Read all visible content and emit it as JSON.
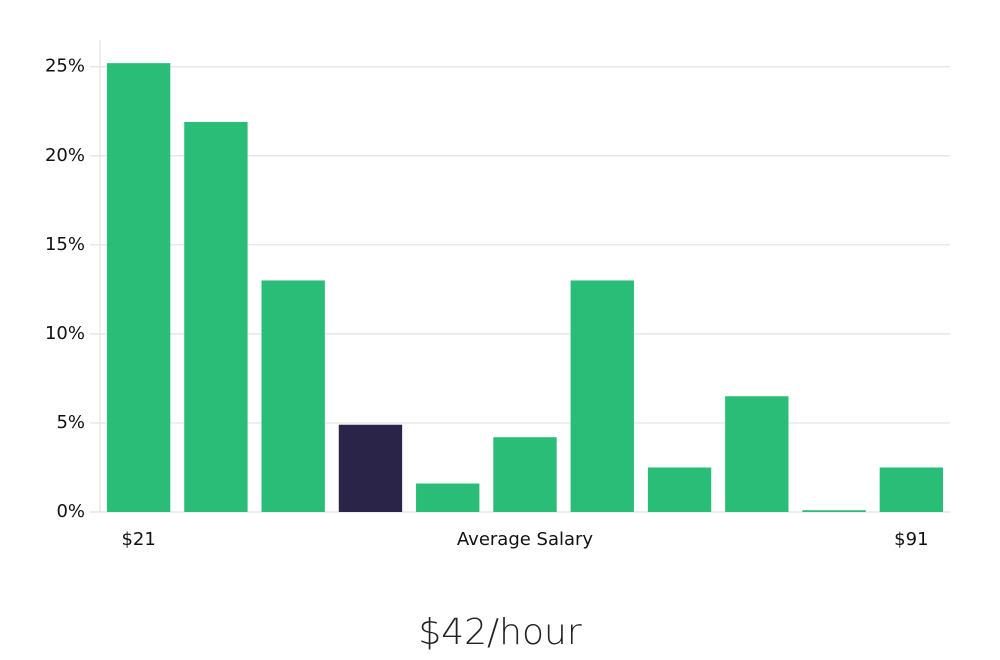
{
  "chart_data": {
    "type": "bar",
    "x_label": "Average Salary",
    "caption": "$42/hour",
    "categories": [
      "$21",
      null,
      null,
      null,
      null,
      null,
      null,
      null,
      null,
      null,
      "$91"
    ],
    "values": [
      25.2,
      21.9,
      13.0,
      4.9,
      1.6,
      4.2,
      13.0,
      2.5,
      6.5,
      0.1,
      2.5
    ],
    "colors": [
      "#2abd78",
      "#2abd78",
      "#2abd78",
      "#2a2548",
      "#2abd78",
      "#2abd78",
      "#2abd78",
      "#2abd78",
      "#2abd78",
      "#2abd78",
      "#2abd78"
    ],
    "ylim": [
      0,
      26.5
    ],
    "yticks": [
      {
        "value": 0,
        "label": "0%"
      },
      {
        "value": 5,
        "label": "5%"
      },
      {
        "value": 10,
        "label": "10%"
      },
      {
        "value": 15,
        "label": "15%"
      },
      {
        "value": 20,
        "label": "20%"
      },
      {
        "value": 25,
        "label": "25%"
      }
    ],
    "grid": true
  }
}
